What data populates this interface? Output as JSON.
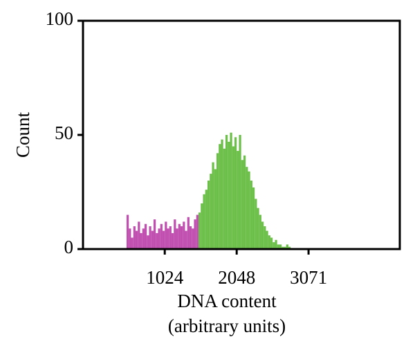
{
  "chart_data": {
    "type": "histogram",
    "xlabel": [
      "DNA content",
      "(arbitrary units)"
    ],
    "ylabel": "Count",
    "xlim": [
      -140,
      4370
    ],
    "xticks": [
      1024,
      2048,
      3071
    ],
    "ylim": [
      0,
      100
    ],
    "yticks": [
      0,
      50,
      100
    ],
    "series": [
      {
        "color": "#c04fb0",
        "bins": [
          480,
          512,
          544,
          576,
          608,
          640,
          672,
          704,
          736,
          768,
          800,
          832,
          864,
          896,
          928,
          960,
          992,
          1024,
          1056,
          1088,
          1120,
          1152,
          1184,
          1216,
          1248,
          1280,
          1312,
          1344,
          1376,
          1408,
          1440,
          1472,
          1504
        ],
        "values": [
          15,
          9,
          5,
          10,
          8,
          12,
          7,
          9,
          11,
          6,
          10,
          8,
          13,
          7,
          9,
          11,
          8,
          12,
          9,
          10,
          7,
          13,
          9,
          11,
          10,
          12,
          8,
          14,
          10,
          9,
          13,
          15
        ]
      },
      {
        "color": "#6cc04a",
        "bins": [
          1504,
          1536,
          1568,
          1600,
          1632,
          1664,
          1696,
          1728,
          1760,
          1792,
          1824,
          1856,
          1888,
          1920,
          1952,
          1984,
          2016,
          2048,
          2080,
          2112,
          2144,
          2176,
          2208,
          2240,
          2272,
          2304,
          2336,
          2368,
          2400,
          2432,
          2464,
          2496,
          2528,
          2560,
          2592,
          2624,
          2656,
          2688,
          2720,
          2752,
          2784,
          2816
        ],
        "values": [
          16,
          20,
          24,
          26,
          30,
          33,
          38,
          35,
          42,
          46,
          48,
          44,
          50,
          47,
          51,
          45,
          49,
          43,
          50,
          39,
          41,
          36,
          34,
          30,
          27,
          22,
          18,
          15,
          12,
          10,
          8,
          6,
          5,
          3,
          4,
          2,
          2,
          1,
          1,
          2,
          1
        ]
      }
    ]
  }
}
